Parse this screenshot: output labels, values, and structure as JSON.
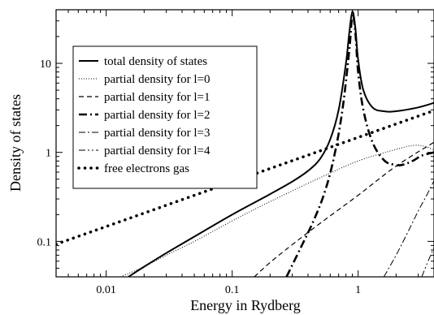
{
  "chart_data": {
    "type": "line",
    "xlabel": "Energy in Rydberg",
    "ylabel": "Density of states",
    "x_scale": "log",
    "y_scale": "log",
    "xlim": [
      0.004,
      4
    ],
    "ylim": [
      0.04,
      40
    ],
    "x_ticks": [
      {
        "value": 0.01,
        "label": "0.01"
      },
      {
        "value": 0.1,
        "label": "0.1"
      },
      {
        "value": 1,
        "label": "1"
      }
    ],
    "y_ticks": [
      {
        "value": 0.1,
        "label": "0.1"
      },
      {
        "value": 1,
        "label": "1"
      },
      {
        "value": 10,
        "label": "10"
      }
    ],
    "grid": false,
    "legend_position": "top-left",
    "series": [
      {
        "name": "total density of states",
        "style": "solid",
        "color": "#000000",
        "x": [
          0.015,
          0.02,
          0.03,
          0.05,
          0.1,
          0.2,
          0.3,
          0.4,
          0.5,
          0.6,
          0.7,
          0.8,
          0.85,
          0.9,
          0.95,
          1.0,
          1.1,
          1.3,
          1.6,
          2.0,
          3.0,
          4.0
        ],
        "y": [
          0.04,
          0.052,
          0.074,
          0.113,
          0.2,
          0.34,
          0.47,
          0.62,
          0.85,
          1.4,
          3.0,
          10,
          22,
          38,
          25,
          11,
          5.0,
          3.2,
          2.9,
          2.9,
          3.2,
          3.6
        ]
      },
      {
        "name": "partial density for l=0",
        "style": "dotted-thin",
        "color": "#000000",
        "x": [
          0.013,
          0.02,
          0.03,
          0.05,
          0.1,
          0.2,
          0.5,
          1.0,
          2.0,
          2.8,
          3.5,
          4.0
        ],
        "y": [
          0.04,
          0.052,
          0.07,
          0.1,
          0.17,
          0.28,
          0.52,
          0.8,
          1.08,
          1.2,
          1.15,
          1.05
        ]
      },
      {
        "name": "partial density for l=1",
        "style": "dashed",
        "color": "#000000",
        "x": [
          0.15,
          0.2,
          0.3,
          0.5,
          1.0,
          2.0,
          4.0
        ],
        "y": [
          0.04,
          0.058,
          0.092,
          0.16,
          0.33,
          0.7,
          1.3
        ]
      },
      {
        "name": "partial density for l=2",
        "style": "dash-dot-thick",
        "color": "#000000",
        "x": [
          0.27,
          0.35,
          0.45,
          0.55,
          0.65,
          0.75,
          0.85,
          0.9,
          0.95,
          1.0,
          1.1,
          1.3,
          1.6,
          1.9,
          2.2,
          2.7,
          3.2,
          4.0
        ],
        "y": [
          0.04,
          0.085,
          0.18,
          0.38,
          0.95,
          3.0,
          14,
          35,
          22,
          8.0,
          3.0,
          1.3,
          0.82,
          0.73,
          0.72,
          0.8,
          0.92,
          1.0
        ]
      },
      {
        "name": "partial density for l=3",
        "style": "dash-dot",
        "color": "#000000",
        "x": [
          1.6,
          2.0,
          2.5,
          3.0,
          3.5,
          4.0
        ],
        "y": [
          0.04,
          0.07,
          0.13,
          0.22,
          0.33,
          0.48
        ]
      },
      {
        "name": "partial density for l=4",
        "style": "dash-dot-dot",
        "color": "#000000",
        "x": [
          3.2,
          3.5,
          4.0
        ],
        "y": [
          0.04,
          0.055,
          0.085
        ]
      },
      {
        "name": "free electrons gas",
        "style": "dotted-thick",
        "color": "#000000",
        "x": [
          0.004,
          4.0
        ],
        "y": [
          0.093,
          2.95
        ]
      }
    ]
  }
}
